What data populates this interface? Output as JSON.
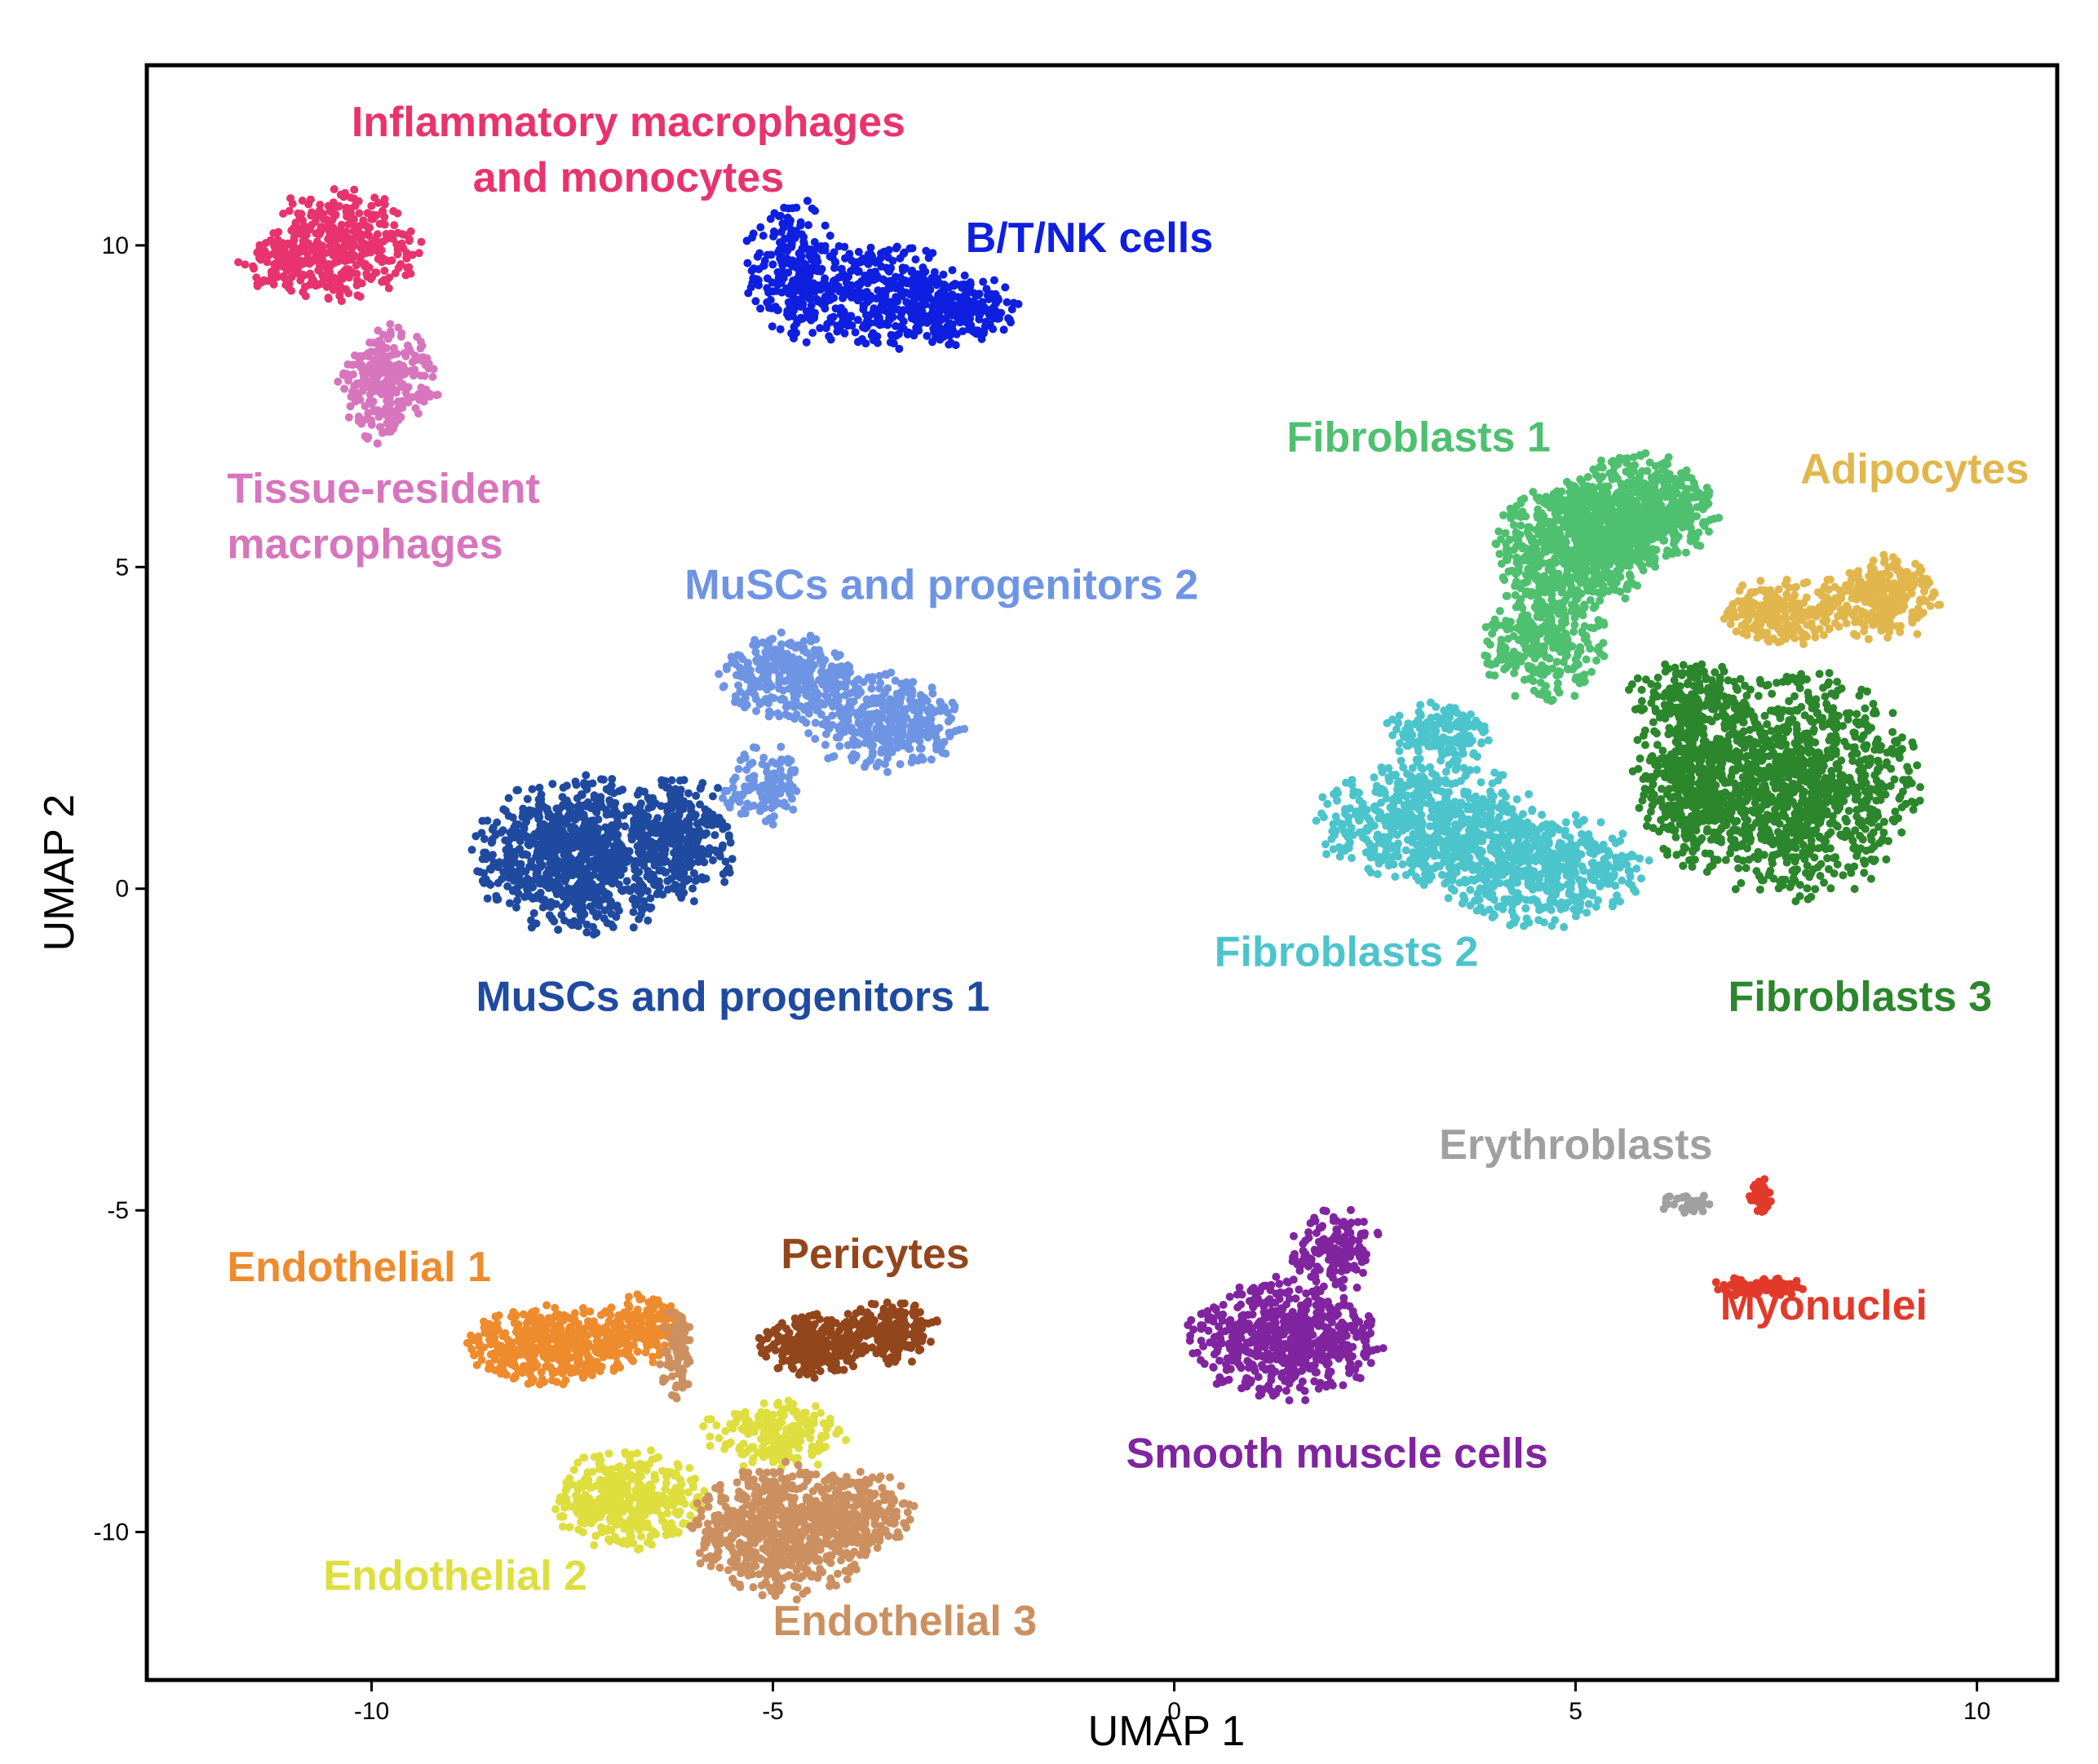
{
  "chart_data": {
    "type": "scatter",
    "title": "",
    "xlabel": "UMAP 1",
    "ylabel": "UMAP 2",
    "xlim": [
      -12.8,
      11.0
    ],
    "ylim": [
      -12.3,
      12.8
    ],
    "xticks": [
      -10,
      -5,
      0,
      5,
      10
    ],
    "yticks": [
      10,
      5,
      0,
      -5,
      -10
    ],
    "xtick_labels": [
      "-10",
      "-5",
      "0",
      "5",
      "10"
    ],
    "ytick_labels": [
      "10",
      "5",
      "0",
      "-5",
      "-10"
    ],
    "grid": false,
    "legend": "none (clusters labelled directly on the plot)",
    "clusters": [
      {
        "name": "Inflammatory macrophages and monocytes",
        "label_lines": [
          "Inflammatory macrophages",
          "and monocytes"
        ],
        "color": "#e8336e",
        "label_at": [
          -6.8,
          11.7
        ],
        "label_anchor": "middle",
        "blobs": [
          {
            "cx": -10.4,
            "cy": 10.0,
            "rx": 0.9,
            "ry": 0.8,
            "n": 380
          },
          {
            "cx": -11.1,
            "cy": 9.7,
            "rx": 0.5,
            "ry": 0.4,
            "n": 90
          }
        ]
      },
      {
        "name": "Tissue-resident macrophages",
        "label_lines": [
          "Tissue-resident",
          "macrophages"
        ],
        "color": "#d775bd",
        "label_at": [
          -11.8,
          6.0
        ],
        "label_anchor": "start",
        "blobs": [
          {
            "cx": -9.8,
            "cy": 7.8,
            "rx": 0.55,
            "ry": 0.85,
            "n": 260
          }
        ]
      },
      {
        "name": "B/T/NK cells",
        "label_lines": [
          "B/T/NK cells"
        ],
        "color": "#0f1fe0",
        "label_at": [
          -2.6,
          9.9
        ],
        "label_anchor": "start",
        "blobs": [
          {
            "cx": -4.7,
            "cy": 9.6,
            "rx": 0.6,
            "ry": 1.0,
            "n": 220
          },
          {
            "cx": -3.7,
            "cy": 9.2,
            "rx": 1.0,
            "ry": 0.8,
            "n": 380
          },
          {
            "cx": -2.6,
            "cy": 9.0,
            "rx": 0.6,
            "ry": 0.5,
            "n": 200
          }
        ]
      },
      {
        "name": "MuSCs and progenitors 2",
        "label_lines": [
          "MuSCs and progenitors 2"
        ],
        "color": "#6e94e4",
        "label_at": [
          -6.1,
          4.5
        ],
        "label_anchor": "start",
        "blobs": [
          {
            "cx": -4.8,
            "cy": 3.3,
            "rx": 0.8,
            "ry": 0.6,
            "n": 320
          },
          {
            "cx": -3.6,
            "cy": 2.6,
            "rx": 0.9,
            "ry": 0.7,
            "n": 380
          },
          {
            "cx": -5.1,
            "cy": 1.6,
            "rx": 0.5,
            "ry": 0.6,
            "n": 130
          }
        ]
      },
      {
        "name": "MuSCs and progenitors 1",
        "label_lines": [
          "MuSCs and progenitors 1"
        ],
        "color": "#1f4aa0",
        "label_at": [
          -8.7,
          -1.9
        ],
        "label_anchor": "start",
        "blobs": [
          {
            "cx": -7.4,
            "cy": 0.5,
            "rx": 1.2,
            "ry": 1.1,
            "n": 900
          },
          {
            "cx": -6.1,
            "cy": 0.8,
            "rx": 0.6,
            "ry": 0.9,
            "n": 260
          }
        ]
      },
      {
        "name": "Fibroblasts 1",
        "label_lines": [
          "Fibroblasts 1"
        ],
        "color": "#4ec070",
        "label_at": [
          1.4,
          6.8
        ],
        "label_anchor": "start",
        "blobs": [
          {
            "cx": 5.0,
            "cy": 5.3,
            "rx": 0.9,
            "ry": 0.9,
            "n": 700
          },
          {
            "cx": 5.8,
            "cy": 5.9,
            "rx": 0.9,
            "ry": 0.8,
            "n": 600
          },
          {
            "cx": 4.6,
            "cy": 3.8,
            "rx": 0.7,
            "ry": 0.8,
            "n": 320
          }
        ]
      },
      {
        "name": "Adipocytes",
        "label_lines": [
          "Adipocytes"
        ],
        "color": "#e1b74d",
        "label_at": [
          7.8,
          6.3
        ],
        "label_anchor": "start",
        "blobs": [
          {
            "cx": 7.6,
            "cy": 4.3,
            "rx": 0.7,
            "ry": 0.5,
            "n": 240
          },
          {
            "cx": 8.8,
            "cy": 4.5,
            "rx": 0.65,
            "ry": 0.6,
            "n": 260
          }
        ]
      },
      {
        "name": "Fibroblasts 2",
        "label_lines": [
          "Fibroblasts 2"
        ],
        "color": "#4cc4cc",
        "label_at": [
          0.5,
          -1.2
        ],
        "label_anchor": "start",
        "blobs": [
          {
            "cx": 3.2,
            "cy": 1.0,
            "rx": 1.3,
            "ry": 0.9,
            "n": 620
          },
          {
            "cx": 4.6,
            "cy": 0.3,
            "rx": 1.2,
            "ry": 0.8,
            "n": 520
          },
          {
            "cx": 3.3,
            "cy": 2.4,
            "rx": 0.6,
            "ry": 0.5,
            "n": 160
          }
        ]
      },
      {
        "name": "Fibroblasts 3",
        "label_lines": [
          "Fibroblasts 3"
        ],
        "color": "#2c862c",
        "label_at": [
          6.9,
          -1.9
        ],
        "label_anchor": "start",
        "blobs": [
          {
            "cx": 7.7,
            "cy": 1.6,
            "rx": 1.4,
            "ry": 1.6,
            "n": 1100
          },
          {
            "cx": 6.5,
            "cy": 1.7,
            "rx": 0.7,
            "ry": 1.3,
            "n": 400
          },
          {
            "cx": 6.4,
            "cy": 3.0,
            "rx": 0.7,
            "ry": 0.5,
            "n": 150
          }
        ]
      },
      {
        "name": "Erythroblasts",
        "label_lines": [
          "Erythroblasts"
        ],
        "color": "#a0a0a0",
        "label_at": [
          3.3,
          -4.2
        ],
        "label_anchor": "start",
        "blobs": [
          {
            "cx": 6.4,
            "cy": -4.9,
            "rx": 0.3,
            "ry": 0.15,
            "n": 40
          }
        ]
      },
      {
        "name": "Myonuclei",
        "label_lines": [
          "Myonuclei"
        ],
        "color": "#e23a2a",
        "label_at": [
          6.8,
          -6.7
        ],
        "label_anchor": "start",
        "blobs": [
          {
            "cx": 7.3,
            "cy": -4.8,
            "rx": 0.12,
            "ry": 0.3,
            "n": 45
          },
          {
            "cx": 7.3,
            "cy": -6.2,
            "rx": 0.55,
            "ry": 0.15,
            "n": 90
          }
        ]
      },
      {
        "name": "Endothelial 1",
        "label_lines": [
          "Endothelial 1"
        ],
        "color": "#ee8b2d",
        "label_at": [
          -11.8,
          -6.1
        ],
        "label_anchor": "start",
        "blobs": [
          {
            "cx": -7.7,
            "cy": -7.1,
            "rx": 1.0,
            "ry": 0.55,
            "n": 480
          },
          {
            "cx": -6.6,
            "cy": -6.8,
            "rx": 0.5,
            "ry": 0.5,
            "n": 150
          }
        ]
      },
      {
        "name": "Pericytes",
        "label_lines": [
          "Pericytes"
        ],
        "color": "#93461c",
        "label_at": [
          -4.9,
          -5.9
        ],
        "label_anchor": "start",
        "blobs": [
          {
            "cx": -4.5,
            "cy": -7.1,
            "rx": 0.6,
            "ry": 0.45,
            "n": 260
          },
          {
            "cx": -3.6,
            "cy": -6.9,
            "rx": 0.6,
            "ry": 0.45,
            "n": 240
          }
        ]
      },
      {
        "name": "Endothelial 2",
        "label_lines": [
          "Endothelial 2"
        ],
        "color": "#dede3e",
        "label_at": [
          -10.6,
          -10.9
        ],
        "label_anchor": "start",
        "blobs": [
          {
            "cx": -6.8,
            "cy": -9.5,
            "rx": 0.85,
            "ry": 0.7,
            "n": 420
          },
          {
            "cx": -5.0,
            "cy": -8.5,
            "rx": 0.8,
            "ry": 0.5,
            "n": 200
          }
        ]
      },
      {
        "name": "Endothelial 3",
        "label_lines": [
          "Endothelial 3"
        ],
        "color": "#cc9060",
        "label_at": [
          -5.0,
          -11.6
        ],
        "label_anchor": "start",
        "blobs": [
          {
            "cx": -4.9,
            "cy": -10.0,
            "rx": 1.0,
            "ry": 0.95,
            "n": 700
          },
          {
            "cx": -3.9,
            "cy": -9.7,
            "rx": 0.6,
            "ry": 0.6,
            "n": 250
          },
          {
            "cx": -6.2,
            "cy": -7.2,
            "rx": 0.2,
            "ry": 0.7,
            "n": 80
          }
        ]
      },
      {
        "name": "Smooth muscle cells",
        "label_lines": [
          "Smooth muscle cells"
        ],
        "color": "#8024a0",
        "label_at": [
          -0.6,
          -9.0
        ],
        "label_anchor": "start",
        "blobs": [
          {
            "cx": 1.4,
            "cy": -7.0,
            "rx": 1.1,
            "ry": 0.85,
            "n": 600
          },
          {
            "cx": 2.0,
            "cy": -5.6,
            "rx": 0.5,
            "ry": 0.6,
            "n": 150
          }
        ]
      }
    ]
  }
}
